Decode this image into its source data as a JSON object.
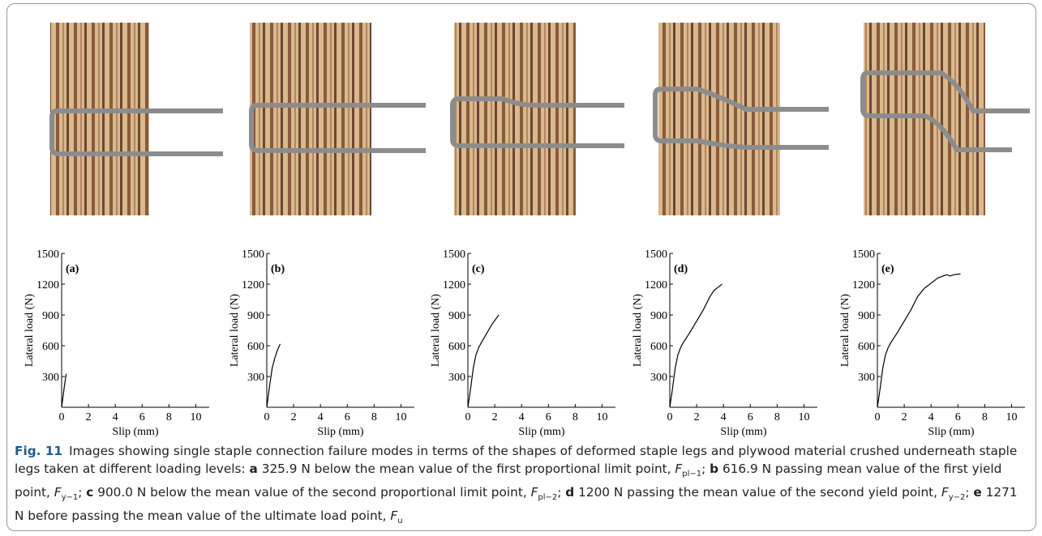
{
  "chart_data": [
    {
      "type": "line",
      "panel": "(a)",
      "xlabel": "Slip (mm)",
      "ylabel": "Lateral load (N)",
      "color": "#000000",
      "x": [
        0,
        0.1,
        0.2,
        0.3,
        0.35
      ],
      "values": [
        0,
        100,
        200,
        290,
        325.9
      ],
      "xlim": [
        0,
        11
      ],
      "ylim": [
        0,
        1500
      ],
      "xticks": [
        0,
        2,
        4,
        6,
        8,
        10
      ],
      "yticks": [
        300,
        600,
        900,
        1200,
        1500
      ]
    },
    {
      "type": "line",
      "panel": "(b)",
      "xlabel": "Slip (mm)",
      "ylabel": "Lateral load (N)",
      "color": "#000000",
      "x": [
        0,
        0.2,
        0.4,
        0.6,
        0.8,
        1.0
      ],
      "values": [
        0,
        200,
        380,
        480,
        560,
        616.9
      ],
      "xlim": [
        0,
        11
      ],
      "ylim": [
        0,
        1500
      ],
      "xticks": [
        0,
        2,
        4,
        6,
        8,
        10
      ],
      "yticks": [
        300,
        600,
        900,
        1200,
        1500
      ]
    },
    {
      "type": "line",
      "panel": "(c)",
      "xlabel": "Slip (mm)",
      "ylabel": "Lateral load (N)",
      "color": "#000000",
      "x": [
        0,
        0.2,
        0.4,
        0.6,
        0.8,
        1.0,
        1.4,
        1.8,
        2.3
      ],
      "values": [
        0,
        180,
        380,
        510,
        580,
        630,
        720,
        810,
        900
      ],
      "xlim": [
        0,
        11
      ],
      "ylim": [
        0,
        1500
      ],
      "xticks": [
        0,
        2,
        4,
        6,
        8,
        10
      ],
      "yticks": [
        300,
        600,
        900,
        1200,
        1500
      ]
    },
    {
      "type": "line",
      "panel": "(d)",
      "xlabel": "Slip (mm)",
      "ylabel": "Lateral load (N)",
      "color": "#000000",
      "x": [
        0,
        0.2,
        0.4,
        0.6,
        0.8,
        1.0,
        1.5,
        2.0,
        2.5,
        3.0,
        3.3,
        3.6,
        3.9
      ],
      "values": [
        0,
        180,
        380,
        510,
        580,
        630,
        730,
        840,
        950,
        1080,
        1140,
        1170,
        1200
      ],
      "xlim": [
        0,
        11
      ],
      "ylim": [
        0,
        1500
      ],
      "xticks": [
        0,
        2,
        4,
        6,
        8,
        10
      ],
      "yticks": [
        300,
        600,
        900,
        1200,
        1500
      ]
    },
    {
      "type": "line",
      "panel": "(e)",
      "xlabel": "Slip (mm)",
      "ylabel": "Lateral load (N)",
      "color": "#000000",
      "x": [
        0,
        0.2,
        0.4,
        0.6,
        0.8,
        1.0,
        1.5,
        2.0,
        2.5,
        3.0,
        3.5,
        4.0,
        4.5,
        5.0,
        5.2,
        5.4,
        5.8,
        6.2
      ],
      "values": [
        0,
        180,
        380,
        510,
        580,
        630,
        730,
        840,
        950,
        1080,
        1160,
        1210,
        1260,
        1285,
        1292,
        1280,
        1295,
        1300
      ],
      "xlim": [
        0,
        11
      ],
      "ylim": [
        0,
        1500
      ],
      "xticks": [
        0,
        2,
        4,
        6,
        8,
        10
      ],
      "yticks": [
        300,
        600,
        900,
        1200,
        1500
      ]
    }
  ],
  "caption": {
    "label": "Fig. 11",
    "intro": "Images showing single staple connection failure modes in terms of the shapes of deformed staple legs and plywood material crushed underneath staple legs taken at different loading levels:",
    "items": [
      {
        "letter": "a",
        "text": "325.9 N below the mean value of the first proportional limit point,",
        "symbol": "F",
        "subscript": "pl−1",
        "sep": ";"
      },
      {
        "letter": "b",
        "text": "616.9 N passing mean value of the first yield point,",
        "symbol": "F",
        "subscript": "y−1",
        "sep": ";"
      },
      {
        "letter": "c",
        "text": "900.0 N below the mean value of the second proportional limit point,",
        "symbol": "F",
        "subscript": "pl−2",
        "sep": ";"
      },
      {
        "letter": "d",
        "text": "1200 N passing the mean value of the second yield point,",
        "symbol": "F",
        "subscript": "y−2",
        "sep": ";"
      },
      {
        "letter": "e",
        "text": "1271 N before passing the mean value of the ultimate load point,",
        "symbol": "F",
        "subscript": "u"
      }
    ]
  }
}
